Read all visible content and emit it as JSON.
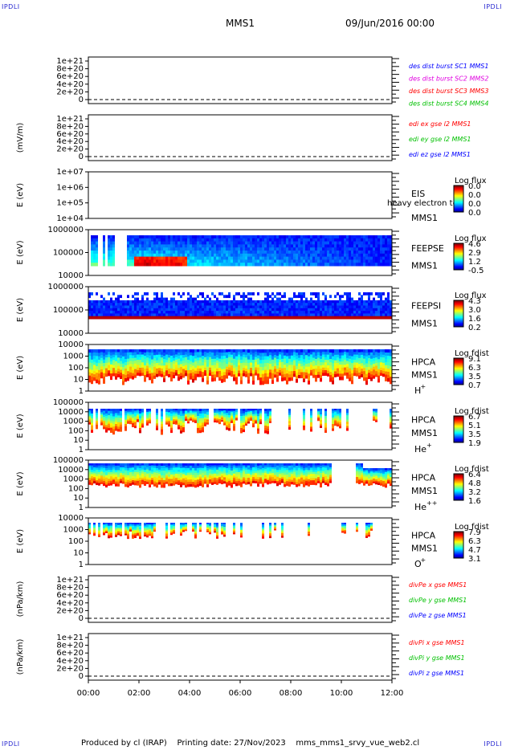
{
  "corners": {
    "tl": "IPDLI",
    "tr": "IPDLI",
    "bl": "IPDLI",
    "br": "IPDLI"
  },
  "header": {
    "mission": "MMS1",
    "date": "09/Jun/2016 00:00"
  },
  "footer": {
    "text": "Produced by cl (IRAP)    Printing date: 27/Nov/2023    mms_mms1_srvy_vue_web2.cl"
  },
  "colors": {
    "red": "#ff0000",
    "green": "#00c000",
    "blue": "#0000ff",
    "magenta": "#e000e0",
    "white": "#ffffff"
  },
  "chart_data": [
    {
      "id": "des",
      "type": "line",
      "ylabel": "",
      "ticks": [
        "1e+21",
        "8e+20",
        "6e+20",
        "4e+20",
        "2e+20",
        "0"
      ],
      "legend": [
        {
          "text": "des dist burst SC1 MMS1",
          "color": "#0000ff"
        },
        {
          "text": "des dist burst SC2 MMS2",
          "color": "#e000e0"
        },
        {
          "text": "des dist burst SC3 MMS3",
          "color": "#ff0000"
        },
        {
          "text": "des dist burst SC4 MMS4",
          "color": "#00c000"
        }
      ],
      "series": []
    },
    {
      "id": "edi",
      "type": "line",
      "ylabel": "(mV/m)",
      "ticks": [
        "1e+21",
        "8e+20",
        "6e+20",
        "4e+20",
        "2e+20",
        "0"
      ],
      "legend": [
        {
          "text": "edi ex gse l2 MMS1",
          "color": "#ff0000"
        },
        {
          "text": "edi ey gse l2 MMS1",
          "color": "#00c000"
        },
        {
          "text": "edi ez gse l2 MMS1",
          "color": "#0000ff"
        }
      ],
      "series": []
    },
    {
      "id": "eis",
      "type": "heatmap",
      "ylabel": "E (eV)",
      "ticks": [
        "1e+07",
        "1e+06",
        "1e+05",
        "1e+04"
      ],
      "labels": [
        "EIS",
        "MMS1"
      ],
      "overlay": "heavy electron tof",
      "cbar": {
        "title": "Log flux",
        "ticks": [
          "0.0",
          "0.0",
          "0.0",
          "0.0"
        ]
      }
    },
    {
      "id": "feepse",
      "type": "heatmap",
      "ylabel": "E (eV)",
      "ticks": [
        "1000000",
        "100000",
        "10000"
      ],
      "labels": [
        "FEEPSE",
        "MMS1"
      ],
      "cbar": {
        "title": "Log flux",
        "ticks": [
          "4.6",
          "2.9",
          "1.2",
          "-0.5"
        ]
      }
    },
    {
      "id": "feepsi",
      "type": "heatmap",
      "ylabel": "E (eV)",
      "ticks": [
        "1000000",
        "100000",
        "10000"
      ],
      "labels": [
        "FEEPSI",
        "MMS1"
      ],
      "cbar": {
        "title": "Log flux",
        "ticks": [
          "4.3",
          "3.0",
          "1.6",
          "0.2"
        ]
      }
    },
    {
      "id": "hpca_h",
      "type": "heatmap",
      "ylabel": "E (eV)",
      "ticks": [
        "10000",
        "1000",
        "100",
        "10",
        "1"
      ],
      "labels": [
        "HPCA",
        "MMS1",
        "H"
      ],
      "species_sup": "+",
      "cbar": {
        "title": "Log fdist",
        "ticks": [
          "9.1",
          "6.3",
          "3.5",
          "0.7"
        ]
      }
    },
    {
      "id": "hpca_he",
      "type": "heatmap",
      "ylabel": "E (eV)",
      "ticks": [
        "100000",
        "10000",
        "1000",
        "100",
        "10",
        "1"
      ],
      "labels": [
        "HPCA",
        "MMS1",
        "He"
      ],
      "species_sup": "+",
      "cbar": {
        "title": "Log fdist",
        "ticks": [
          "6.7",
          "5.1",
          "3.5",
          "1.9"
        ]
      }
    },
    {
      "id": "hpca_hepp",
      "type": "heatmap",
      "ylabel": "E (eV)",
      "ticks": [
        "100000",
        "10000",
        "1000",
        "100",
        "10",
        "1"
      ],
      "labels": [
        "HPCA",
        "MMS1",
        "He"
      ],
      "species_sup": "++",
      "cbar": {
        "title": "Log fdist",
        "ticks": [
          "6.4",
          "4.8",
          "3.2",
          "1.6"
        ]
      }
    },
    {
      "id": "hpca_o",
      "type": "heatmap",
      "ylabel": "E (eV)",
      "ticks": [
        "10000",
        "1000",
        "100",
        "10",
        "1"
      ],
      "labels": [
        "HPCA",
        "MMS1",
        "O"
      ],
      "species_sup": "+",
      "cbar": {
        "title": "Log fdist",
        "ticks": [
          "7.9",
          "6.3",
          "4.7",
          "3.1"
        ]
      }
    },
    {
      "id": "divpe",
      "type": "line",
      "ylabel": "(nPa/km)",
      "ticks": [
        "1e+21",
        "8e+20",
        "6e+20",
        "4e+20",
        "2e+20",
        "0"
      ],
      "legend": [
        {
          "text": "divPe x gse MMS1",
          "color": "#ff0000"
        },
        {
          "text": "divPe y gse MMS1",
          "color": "#00c000"
        },
        {
          "text": "divPe z gse MMS1",
          "color": "#0000ff"
        }
      ],
      "series": []
    },
    {
      "id": "divpi",
      "type": "line",
      "ylabel": "(nPa/km)",
      "ticks": [
        "1e+21",
        "8e+20",
        "6e+20",
        "4e+20",
        "2e+20",
        "0"
      ],
      "legend": [
        {
          "text": "divPi x gse MMS1",
          "color": "#ff0000"
        },
        {
          "text": "divPi y gse MMS1",
          "color": "#00c000"
        },
        {
          "text": "divPi z gse MMS1",
          "color": "#0000ff"
        }
      ],
      "series": []
    }
  ],
  "xaxis": {
    "ticks": [
      "00:00",
      "02:00",
      "04:00",
      "06:00",
      "08:00",
      "10:00",
      "12:00"
    ]
  }
}
